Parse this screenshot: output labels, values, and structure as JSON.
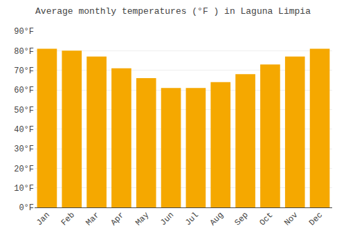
{
  "chart_data": {
    "type": "bar",
    "title": "Average monthly temperatures (°F ) in Laguna Limpia",
    "categories": [
      "Jan",
      "Feb",
      "Mar",
      "Apr",
      "May",
      "Jun",
      "Jul",
      "Aug",
      "Sep",
      "Oct",
      "Nov",
      "Dec"
    ],
    "values": [
      81,
      80,
      77,
      71,
      66,
      61,
      61,
      64,
      68,
      73,
      77,
      81
    ],
    "color": "#F5A800",
    "ylim": [
      0,
      90
    ],
    "yticks": [
      {
        "value": 0,
        "label": "0°F"
      },
      {
        "value": 10,
        "label": "10°F"
      },
      {
        "value": 20,
        "label": "20°F"
      },
      {
        "value": 30,
        "label": "30°F"
      },
      {
        "value": 40,
        "label": "40°F"
      },
      {
        "value": 50,
        "label": "50°F"
      },
      {
        "value": 60,
        "label": "60°F"
      },
      {
        "value": 70,
        "label": "70°F"
      },
      {
        "value": 80,
        "label": "80°F"
      },
      {
        "value": 90,
        "label": "90°F"
      }
    ],
    "grid": true
  }
}
